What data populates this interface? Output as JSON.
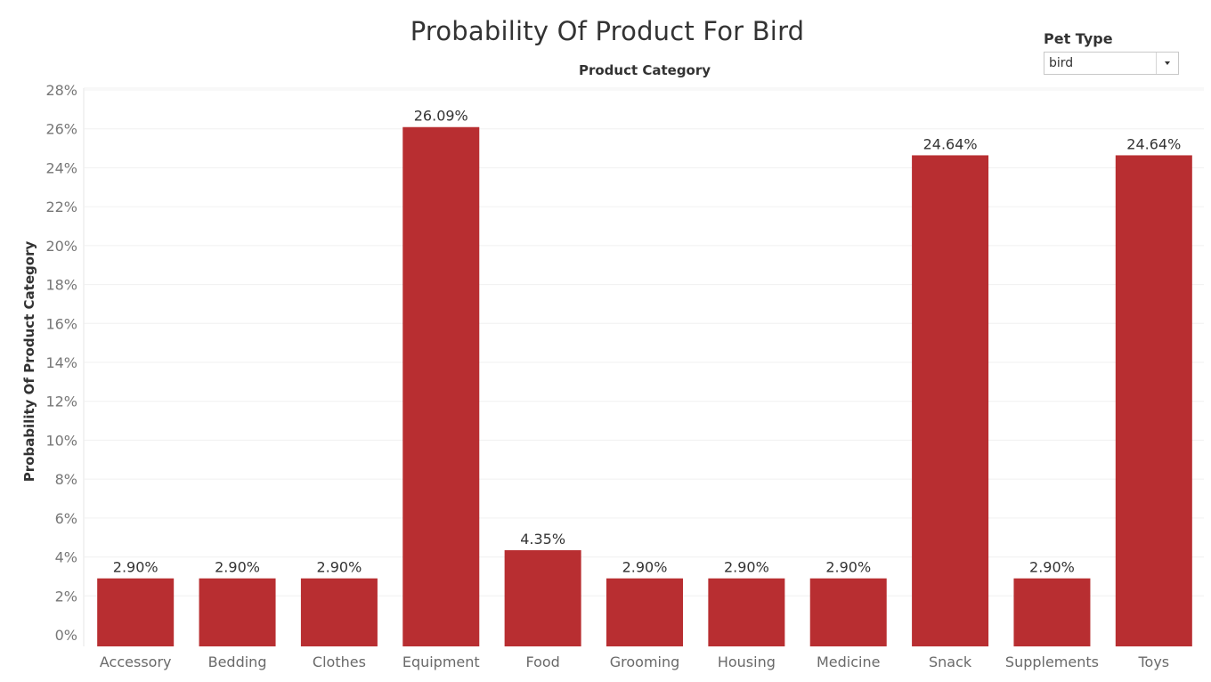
{
  "title": "Probability Of Product For Bird",
  "filter": {
    "label": "Pet Type",
    "value": "bird"
  },
  "chart_data": {
    "type": "bar",
    "title": "Probability Of Product For Bird",
    "xlabel": "Product Category",
    "ylabel": "Probability Of Product Category",
    "categories": [
      "Accessory",
      "Bedding",
      "Clothes",
      "Equipment",
      "Food",
      "Grooming",
      "Housing",
      "Medicine",
      "Snack",
      "Supplements",
      "Toys"
    ],
    "values": [
      2.9,
      2.9,
      2.9,
      26.09,
      4.35,
      2.9,
      2.9,
      2.9,
      24.64,
      2.9,
      24.64
    ],
    "data_labels": [
      "2.90%",
      "2.90%",
      "2.90%",
      "26.09%",
      "4.35%",
      "2.90%",
      "2.90%",
      "2.90%",
      "24.64%",
      "2.90%",
      "24.64%"
    ],
    "yticks": [
      0,
      2,
      4,
      6,
      8,
      10,
      12,
      14,
      16,
      18,
      20,
      22,
      24,
      26,
      28
    ],
    "ytick_labels": [
      "0%",
      "2%",
      "4%",
      "6%",
      "8%",
      "10%",
      "12%",
      "14%",
      "16%",
      "18%",
      "20%",
      "22%",
      "24%",
      "26%",
      "28%"
    ],
    "ylim": [
      0,
      28
    ],
    "grid": true,
    "bar_color": "#b82e31"
  }
}
